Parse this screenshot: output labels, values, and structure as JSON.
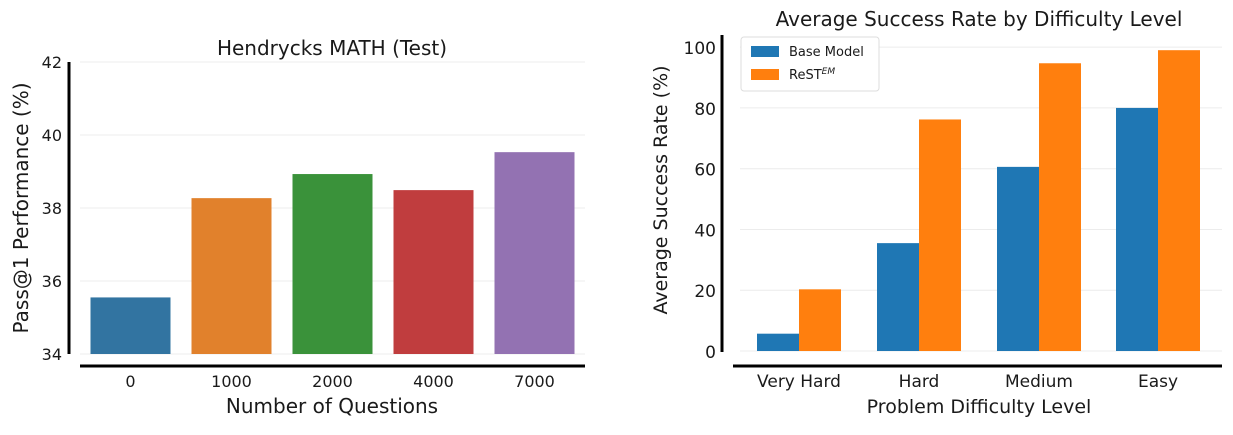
{
  "chart_data": [
    {
      "type": "bar",
      "title": "Hendrycks MATH (Test)",
      "xlabel": "Number of Questions",
      "ylabel": "Pass@1 Performance (%)",
      "categories": [
        "0",
        "1000",
        "2000",
        "4000",
        "7000"
      ],
      "values": [
        35.55,
        38.27,
        38.93,
        38.49,
        39.53
      ],
      "colors": [
        "#3274a1",
        "#e1812c",
        "#3a923a",
        "#c03d3e",
        "#9372b2"
      ],
      "ylim": [
        34,
        42
      ],
      "yticks": [
        "34",
        "36",
        "38",
        "40",
        "42"
      ],
      "grid": true
    },
    {
      "type": "bar",
      "title": "Average Success Rate by Difficulty Level",
      "xlabel": "Problem Difficulty Level",
      "ylabel": "Average Success Rate (%)",
      "categories": [
        "Very Hard",
        "Hard",
        "Medium",
        "Easy"
      ],
      "series": [
        {
          "name": "Base Model",
          "values": [
            5.7,
            35.5,
            60.6,
            80.0
          ],
          "color": "#1f77b4"
        },
        {
          "name": "ReST",
          "name_sup": "EM",
          "values": [
            20.3,
            76.2,
            94.7,
            99.0
          ],
          "color": "#ff7f0e"
        }
      ],
      "ylim": [
        0,
        104
      ],
      "yticks": [
        "0",
        "20",
        "40",
        "60",
        "80",
        "100"
      ],
      "legend": "top-left",
      "grid": true
    }
  ]
}
